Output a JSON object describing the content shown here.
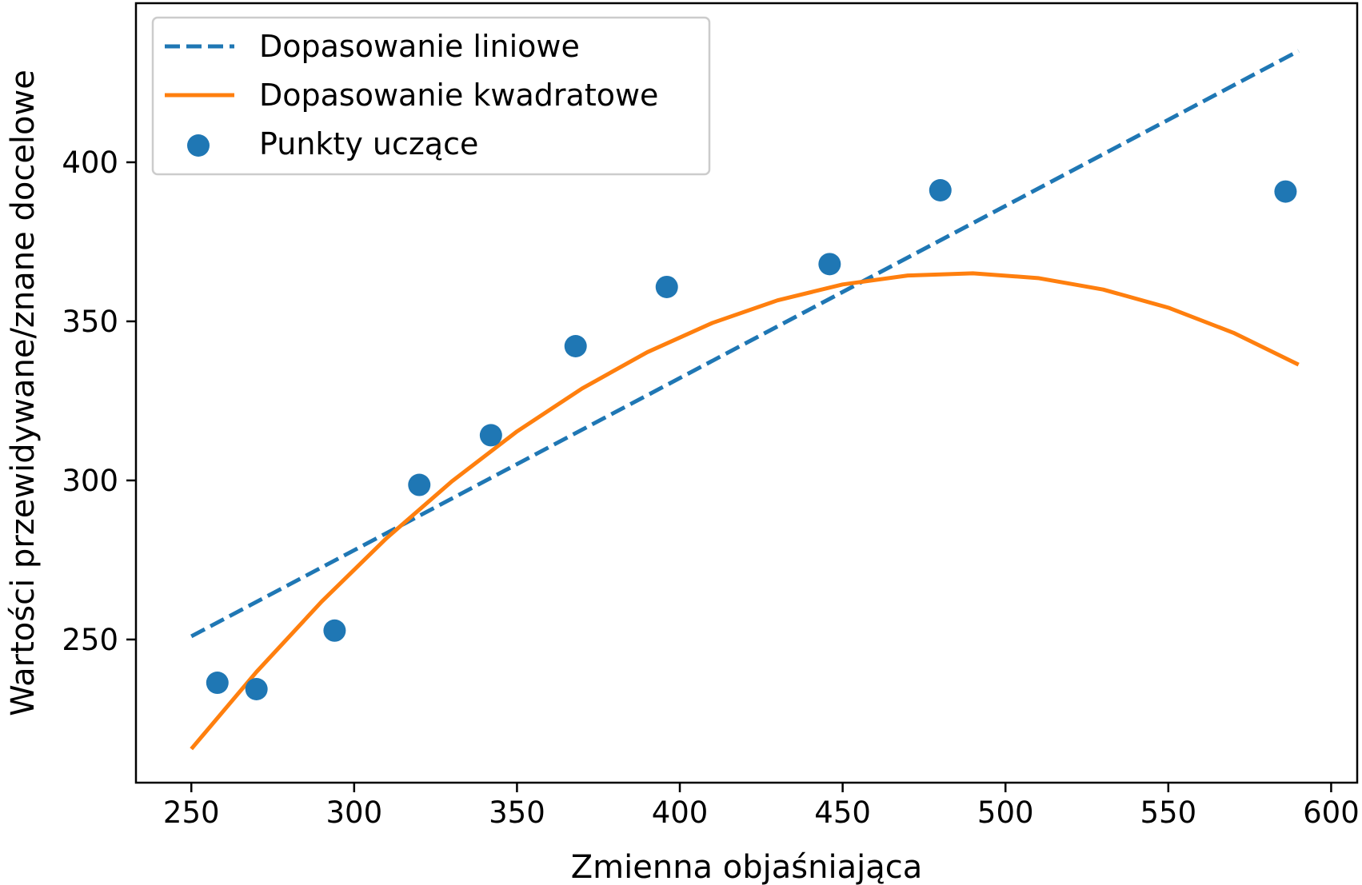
{
  "chart_data": {
    "type": "scatter",
    "xlabel": "Zmienna objaśniająca",
    "ylabel": "Wartości przewidywane/znane docelowe",
    "xlim": [
      233,
      608
    ],
    "ylim": [
      205,
      450
    ],
    "xticks": [
      250,
      300,
      350,
      400,
      450,
      500,
      550,
      600
    ],
    "yticks": [
      250,
      300,
      350,
      400
    ],
    "grid": false,
    "legend_position": "top-left",
    "series": [
      {
        "name": "Dopasowanie liniowe",
        "kind": "line",
        "style": "dashed",
        "color": "#1f77b4",
        "x": [
          250,
          590
        ],
        "y": [
          251,
          435
        ]
      },
      {
        "name": "Dopasowanie kwadratowe",
        "kind": "line",
        "style": "solid",
        "color": "#ff7f0e",
        "x": [
          250,
          270,
          290,
          310,
          330,
          350,
          370,
          390,
          410,
          430,
          450,
          470,
          490,
          510,
          530,
          550,
          570,
          590
        ],
        "y": [
          215.6,
          239.8,
          261.9,
          281.9,
          299.7,
          315.4,
          328.9,
          340.3,
          349.5,
          356.6,
          361.6,
          364.4,
          365.1,
          363.6,
          360,
          354.3,
          346.4,
          336.4
        ]
      },
      {
        "name": "Punkty uczące",
        "kind": "scatter",
        "color": "#1f77b4",
        "x": [
          258,
          270,
          294,
          320,
          342,
          368,
          396,
          446,
          480,
          586
        ],
        "y": [
          236.4,
          234.4,
          252.8,
          298.6,
          314.2,
          342.2,
          360.8,
          368,
          391.2,
          390.8
        ]
      }
    ]
  }
}
